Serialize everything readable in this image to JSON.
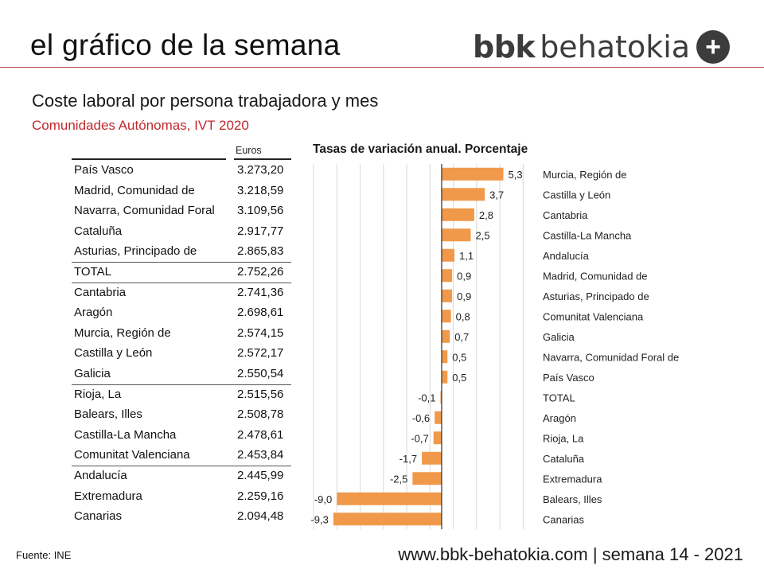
{
  "header": {
    "title": "el gráfico de la semana",
    "logo_bold": "bbk",
    "logo_light": "behatokia",
    "logo_symbol": "+"
  },
  "subtitle": "Coste laboral por persona trabajadora y mes",
  "subsubtitle": "Comunidades Autónomas, IVT 2020",
  "table": {
    "column_header": "Euros",
    "rows": [
      {
        "name": "País Vasco",
        "value": "3.273,20"
      },
      {
        "name": "Madrid, Comunidad de",
        "value": "3.218,59"
      },
      {
        "name": "Navarra, Comunidad Foral",
        "value": "3.109,56"
      },
      {
        "name": "Cataluña",
        "value": "2.917,77"
      },
      {
        "name": "Asturias, Principado de",
        "value": "2.865,83"
      },
      {
        "name": "TOTAL",
        "value": "2.752,26"
      },
      {
        "name": "Cantabria",
        "value": "2.741,36"
      },
      {
        "name": "Aragón",
        "value": "2.698,61"
      },
      {
        "name": "Murcia, Región de",
        "value": "2.574,15"
      },
      {
        "name": "Castilla y León",
        "value": "2.572,17"
      },
      {
        "name": "Galicia",
        "value": "2.550,54"
      },
      {
        "name": "Rioja, La",
        "value": "2.515,56"
      },
      {
        "name": "Balears, Illes",
        "value": "2.508,78"
      },
      {
        "name": "Castilla-La Mancha",
        "value": "2.478,61"
      },
      {
        "name": "Comunitat Valenciana",
        "value": "2.453,84"
      },
      {
        "name": "Andalucía",
        "value": "2.445,99"
      },
      {
        "name": "Extremadura",
        "value": "2.259,16"
      },
      {
        "name": "Canarias",
        "value": "2.094,48"
      }
    ]
  },
  "chart_data": {
    "type": "bar",
    "orientation": "horizontal",
    "title": "Tasas de variación anual. Porcentaje",
    "categories": [
      "Murcia, Región de",
      "Castilla y León",
      "Cantabria",
      "Castilla-La Mancha",
      "Andalucía",
      "Madrid, Comunidad de",
      "Asturias, Principado de",
      "Comunitat Valenciana",
      "Galicia",
      "Navarra, Comunidad Foral de",
      "País Vasco",
      "TOTAL",
      "Aragón",
      "Rioja, La",
      "Cataluña",
      "Extremadura",
      "Balears, Illes",
      "Canarias"
    ],
    "values": [
      5.3,
      3.7,
      2.8,
      2.5,
      1.1,
      0.9,
      0.9,
      0.8,
      0.7,
      0.5,
      0.5,
      -0.1,
      -0.6,
      -0.7,
      -1.7,
      -2.5,
      -9.0,
      -9.3
    ],
    "labels": [
      "5,3",
      "3,7",
      "2,8",
      "2,5",
      "1,1",
      "0,9",
      "0,9",
      "0,8",
      "0,7",
      "0,5",
      "0,5",
      "-0,1",
      "-0,6",
      "-0,7",
      "-1,7",
      "-2,5",
      "-9,0",
      "-9,3"
    ],
    "xlim": [
      -11,
      8
    ],
    "bar_color": "#f0994a",
    "grid": true
  },
  "source": "Fuente:  INE",
  "footer": "www.bbk-behatokia.com | semana 14 - 2021"
}
